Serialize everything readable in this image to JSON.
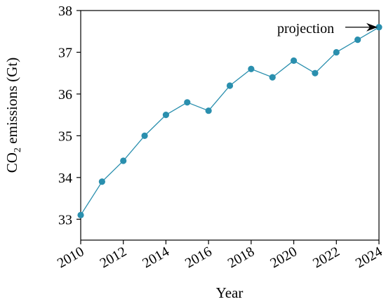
{
  "chart_data": {
    "type": "line",
    "x": [
      2010,
      2011,
      2012,
      2013,
      2014,
      2015,
      2016,
      2017,
      2018,
      2019,
      2020,
      2021,
      2022,
      2023,
      2024
    ],
    "series": [
      {
        "values": [
          33.1,
          33.9,
          34.4,
          35.0,
          35.5,
          35.8,
          35.6,
          36.2,
          36.6,
          36.4,
          36.8,
          36.5,
          37.0,
          37.3,
          37.6
        ],
        "color": "#2a8fae"
      }
    ],
    "xlabel": "Year",
    "ylabel_main": "CO",
    "ylabel_sub": "2",
    "ylabel_rest": " emissions (Gt)",
    "xlim": [
      2010,
      2024
    ],
    "ylim": [
      32.5,
      38
    ],
    "x_ticks": [
      "2010",
      "2012",
      "2014",
      "2016",
      "2018",
      "2020",
      "2022",
      "2024"
    ],
    "y_ticks": [
      "33",
      "34",
      "35",
      "36",
      "37",
      "38"
    ],
    "grid": false,
    "annotation": {
      "text": "projection",
      "x": 2024,
      "y": 37.6
    }
  }
}
